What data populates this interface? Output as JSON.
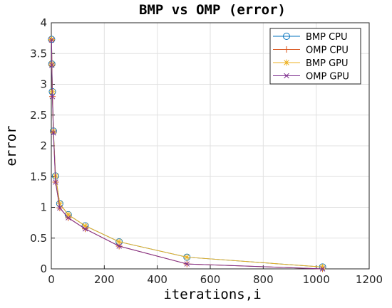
{
  "chart_data": {
    "type": "line",
    "title": "BMP vs OMP (error)",
    "xlabel": "iterations,i",
    "ylabel": "error",
    "xlim": [
      0,
      1200
    ],
    "ylim": [
      0,
      4
    ],
    "xticks": [
      0,
      200,
      400,
      600,
      800,
      1000,
      1200
    ],
    "yticks": [
      0,
      0.5,
      1,
      1.5,
      2,
      2.5,
      3,
      3.5,
      4
    ],
    "grid": true,
    "legend_position": "top-right",
    "series": [
      {
        "name": "BMP  CPU",
        "color": "#0072BD",
        "marker": "circle",
        "x": [
          1,
          2,
          4,
          8,
          16,
          32,
          64,
          128,
          256,
          512,
          1024
        ],
        "y": [
          3.73,
          3.33,
          2.88,
          2.24,
          1.51,
          1.06,
          0.88,
          0.7,
          0.44,
          0.19,
          0.03
        ]
      },
      {
        "name": "OMP  CPU",
        "color": "#D95319",
        "marker": "plus",
        "x": [
          1,
          2,
          4,
          8,
          16,
          32,
          64,
          128,
          256,
          512,
          1024
        ],
        "y": [
          3.72,
          3.31,
          2.8,
          2.21,
          1.41,
          0.99,
          0.83,
          0.65,
          0.37,
          0.08,
          0.0
        ]
      },
      {
        "name": "BMP  GPU",
        "color": "#EDB120",
        "marker": "asterisk",
        "x": [
          1,
          2,
          4,
          8,
          16,
          32,
          64,
          128,
          256,
          512,
          1024
        ],
        "y": [
          3.73,
          3.33,
          2.88,
          2.24,
          1.51,
          1.06,
          0.88,
          0.7,
          0.44,
          0.19,
          0.03
        ]
      },
      {
        "name": "OMP  GPU",
        "color": "#7E2F8E",
        "marker": "cross",
        "x": [
          1,
          2,
          4,
          8,
          16,
          32,
          64,
          128,
          256,
          512,
          1024
        ],
        "y": [
          3.72,
          3.31,
          2.8,
          2.21,
          1.41,
          0.99,
          0.83,
          0.65,
          0.37,
          0.08,
          0.0
        ]
      }
    ]
  }
}
